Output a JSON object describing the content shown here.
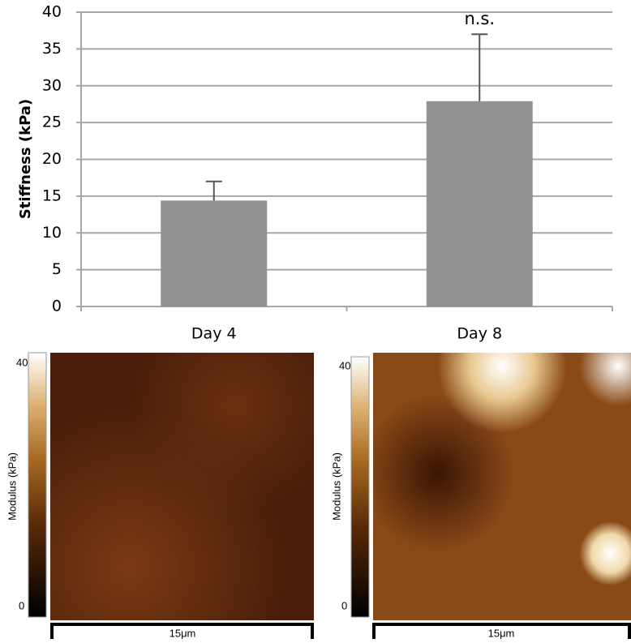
{
  "chart_data": {
    "type": "bar",
    "y_label": "Stiffness (kPa)",
    "categories": [
      "Day 4",
      "Day 8"
    ],
    "values": [
      14.4,
      27.9
    ],
    "errors": [
      2.6,
      9.1
    ],
    "color": "#929292",
    "annotation": "n.s.",
    "ylim": [
      0,
      40
    ],
    "yticks": [
      0,
      5,
      10,
      15,
      20,
      25,
      30,
      35,
      40
    ],
    "grid": true
  },
  "images": [
    {
      "colorbar_label": "Modulus (kPa)",
      "colorbar_ticks": [
        0,
        40
      ],
      "scale_bar": "15μm"
    },
    {
      "colorbar_label": "Modulus (kPa)",
      "colorbar_ticks": [
        0,
        40
      ],
      "scale_bar": "15μm"
    }
  ]
}
